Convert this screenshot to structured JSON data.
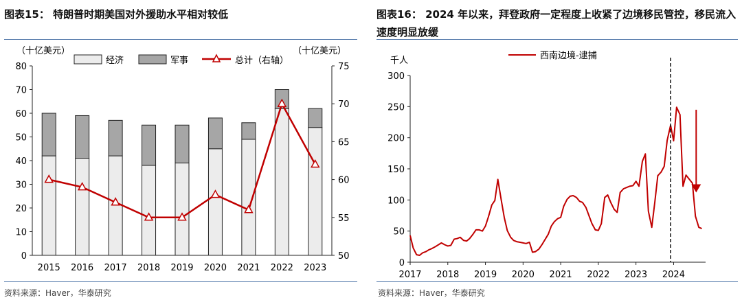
{
  "left": {
    "title": "图表15：  特朗普时期美国对外援助水平相对较低",
    "source": "资料来源：Haver，华泰研究",
    "chart_data": {
      "type": "bar",
      "stacked": true,
      "categories": [
        "2015",
        "2016",
        "2017",
        "2018",
        "2019",
        "2020",
        "2021",
        "2022",
        "2023"
      ],
      "series": [
        {
          "name": "经济",
          "axis": "left",
          "color": "#ececec",
          "values": [
            42,
            41,
            42,
            38,
            39,
            45,
            49,
            62,
            54
          ]
        },
        {
          "name": "军事",
          "axis": "left",
          "color": "#a6a6a6",
          "values": [
            18,
            18,
            15,
            17,
            16,
            13,
            7,
            8,
            8
          ]
        }
      ],
      "line_series": {
        "name": "总计（右轴）",
        "axis": "right",
        "color": "#c00000",
        "values": [
          60,
          59,
          57,
          55,
          55,
          58,
          56,
          70,
          62
        ]
      },
      "ylabel_left": "（十亿美元）",
      "ylabel_right": "（十亿美元）",
      "ylim_left": [
        0,
        80
      ],
      "yticks_left": [
        0,
        10,
        20,
        30,
        40,
        50,
        60,
        70,
        80
      ],
      "ylim_right": [
        50,
        75
      ],
      "yticks_right": [
        50,
        55,
        60,
        65,
        70,
        75
      ],
      "legend": [
        "经济",
        "军事",
        "总计（右轴）"
      ]
    }
  },
  "right": {
    "title": "图表16：  2024 年以来，拜登政府一定程度上收紧了边境移民管控，移民流入速度明显放缓",
    "source": "资料来源：Haver，华泰研究",
    "chart_data": {
      "type": "line",
      "series": [
        {
          "name": "西南边境-逮捕",
          "color": "#c00000",
          "x": [
            2017.0,
            2017.08,
            2017.17,
            2017.25,
            2017.33,
            2017.42,
            2017.5,
            2017.58,
            2017.67,
            2017.75,
            2017.83,
            2017.92,
            2018.0,
            2018.08,
            2018.17,
            2018.25,
            2018.33,
            2018.42,
            2018.5,
            2018.58,
            2018.67,
            2018.75,
            2018.83,
            2018.92,
            2019.0,
            2019.08,
            2019.17,
            2019.25,
            2019.33,
            2019.42,
            2019.5,
            2019.58,
            2019.67,
            2019.75,
            2019.83,
            2019.92,
            2020.0,
            2020.08,
            2020.17,
            2020.25,
            2020.33,
            2020.42,
            2020.5,
            2020.58,
            2020.67,
            2020.75,
            2020.83,
            2020.92,
            2021.0,
            2021.08,
            2021.17,
            2021.25,
            2021.33,
            2021.42,
            2021.5,
            2021.58,
            2021.67,
            2021.75,
            2021.83,
            2021.92,
            2022.0,
            2022.08,
            2022.17,
            2022.25,
            2022.33,
            2022.42,
            2022.5,
            2022.58,
            2022.67,
            2022.75,
            2022.83,
            2022.92,
            2023.0,
            2023.08,
            2023.17,
            2023.25,
            2023.33,
            2023.42,
            2023.5,
            2023.58,
            2023.67,
            2023.75,
            2023.83,
            2023.92,
            2024.0,
            2024.08,
            2024.17,
            2024.25,
            2024.33,
            2024.42,
            2024.5,
            2024.58,
            2024.67,
            2024.75
          ],
          "values": [
            43,
            23,
            12,
            11,
            15,
            17,
            20,
            22,
            25,
            28,
            31,
            28,
            26,
            27,
            37,
            38,
            40,
            35,
            34,
            38,
            45,
            52,
            52,
            50,
            58,
            73,
            92,
            99,
            133,
            100,
            72,
            51,
            40,
            35,
            33,
            32,
            31,
            30,
            32,
            16,
            17,
            21,
            28,
            36,
            45,
            58,
            65,
            70,
            72,
            90,
            101,
            106,
            107,
            104,
            98,
            96,
            88,
            75,
            62,
            52,
            51,
            62,
            104,
            108,
            96,
            85,
            80,
            112,
            118,
            120,
            122,
            123,
            130,
            122,
            162,
            174,
            82,
            56,
            96,
            139,
            145,
            154,
            196,
            220,
            195,
            249,
            237,
            122,
            140,
            133,
            127,
            74,
            56,
            54
          ]
        }
      ],
      "ylabel": "千人",
      "ylim": [
        0,
        300
      ],
      "yticks": [
        0,
        50,
        100,
        150,
        200,
        250,
        300
      ],
      "xlim": [
        2017,
        2024.85
      ],
      "xticks": [
        "2017",
        "2018",
        "2019",
        "2020",
        "2021",
        "2022",
        "2023",
        "2024"
      ],
      "vline_x": 2023.92,
      "arrow": {
        "x": 2024.6,
        "from": 245,
        "to": 112
      },
      "legend": [
        "西南边境-逮捕"
      ]
    }
  }
}
